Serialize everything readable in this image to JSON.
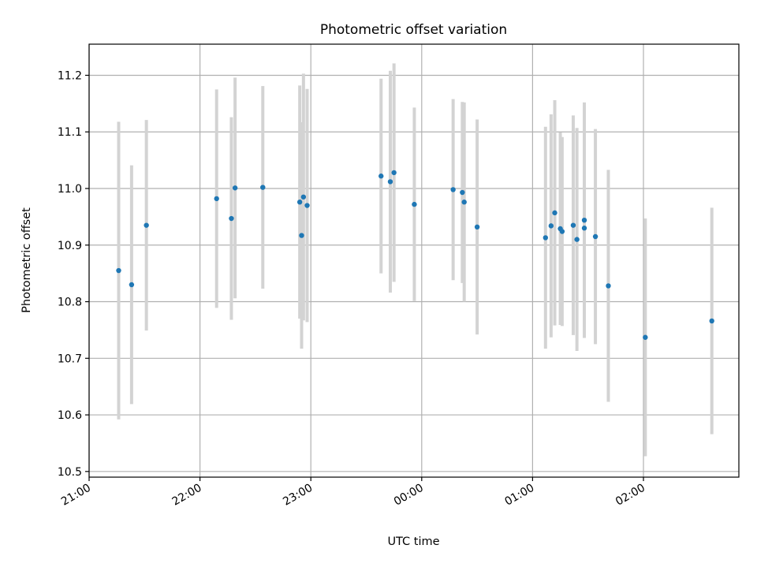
{
  "chart_data": {
    "type": "scatter",
    "title": "Photometric offset variation",
    "xlabel": "UTC time",
    "ylabel": "Photometric offset",
    "x_unit": "UTC time (HH:MM)",
    "xlim": [
      "20:59",
      "02:52 (+1 day)"
    ],
    "ylim": [
      10.49,
      11.255
    ],
    "grid": true,
    "legend": "none",
    "x_ticks": [
      "21:00",
      "22:00",
      "23:00",
      "00:00",
      "01:00",
      "02:00"
    ],
    "y_ticks": [
      "10.5",
      "10.6",
      "10.7",
      "10.8",
      "10.9",
      "11.0",
      "11.1",
      "11.2"
    ],
    "colors": {
      "marker": "#1f77b4",
      "errorbar": "#d3d3d3",
      "grid": "#b0b0b0"
    },
    "points": [
      {
        "time": "21:16",
        "y": 10.855,
        "err": 0.263
      },
      {
        "time": "21:23",
        "y": 10.83,
        "err": 0.211
      },
      {
        "time": "21:31",
        "y": 10.935,
        "err": 0.186
      },
      {
        "time": "22:09",
        "y": 10.982,
        "err": 0.193
      },
      {
        "time": "22:17",
        "y": 10.947,
        "err": 0.179
      },
      {
        "time": "22:19",
        "y": 11.001,
        "err": 0.195
      },
      {
        "time": "22:34",
        "y": 11.002,
        "err": 0.179
      },
      {
        "time": "22:54",
        "y": 10.976,
        "err": 0.206
      },
      {
        "time": "22:55",
        "y": 10.917,
        "err": 0.2
      },
      {
        "time": "22:56",
        "y": 10.985,
        "err": 0.218
      },
      {
        "time": "22:58",
        "y": 10.97,
        "err": 0.206
      },
      {
        "time": "23:38",
        "y": 11.022,
        "err": 0.172
      },
      {
        "time": "23:43",
        "y": 11.012,
        "err": 0.196
      },
      {
        "time": "23:45",
        "y": 11.028,
        "err": 0.193
      },
      {
        "time": "23:56",
        "y": 10.972,
        "err": 0.171
      },
      {
        "time": "00:17",
        "y": 10.998,
        "err": 0.16
      },
      {
        "time": "00:22",
        "y": 10.993,
        "err": 0.16
      },
      {
        "time": "00:23",
        "y": 10.976,
        "err": 0.176
      },
      {
        "time": "00:30",
        "y": 10.932,
        "err": 0.19
      },
      {
        "time": "01:07",
        "y": 10.913,
        "err": 0.196
      },
      {
        "time": "01:10",
        "y": 10.934,
        "err": 0.197
      },
      {
        "time": "01:12",
        "y": 10.957,
        "err": 0.199
      },
      {
        "time": "01:15",
        "y": 10.929,
        "err": 0.17
      },
      {
        "time": "01:16",
        "y": 10.924,
        "err": 0.167
      },
      {
        "time": "01:22",
        "y": 10.935,
        "err": 0.194
      },
      {
        "time": "01:24",
        "y": 10.91,
        "err": 0.197
      },
      {
        "time": "01:28",
        "y": 10.93,
        "err": 0.175
      },
      {
        "time": "01:28",
        "y": 10.944,
        "err": 0.208
      },
      {
        "time": "01:34",
        "y": 10.915,
        "err": 0.19
      },
      {
        "time": "01:41",
        "y": 10.828,
        "err": 0.205
      },
      {
        "time": "02:01",
        "y": 10.737,
        "err": 0.21
      },
      {
        "time": "02:37",
        "y": 10.766,
        "err": 0.2
      }
    ]
  }
}
